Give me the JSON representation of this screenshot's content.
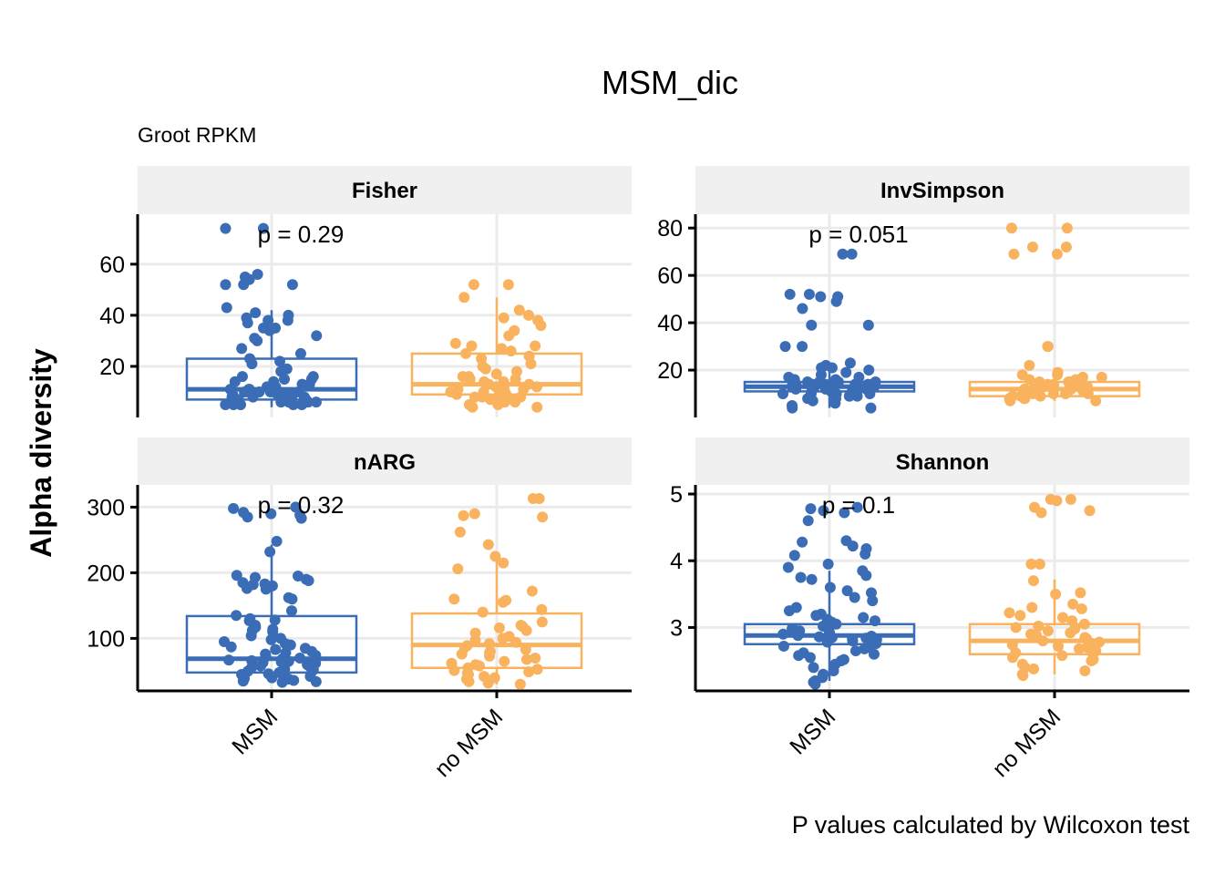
{
  "title": "MSM_dic",
  "subtitle": "Groot RPKM",
  "ylabel": "Alpha diversity",
  "caption": "P values calculated by Wilcoxon test",
  "colors": {
    "MSM": "#3a6db5",
    "no MSM": "#f9b25e",
    "strip_bg": "#f0f0f0",
    "grid": "#ebebeb"
  },
  "chart_data": {
    "type": "box",
    "categories": [
      "MSM",
      "no MSM"
    ],
    "panels": [
      {
        "name": "Fisher",
        "p_label": "p = 0.29",
        "ylim": [
          0,
          76
        ],
        "yticks": [
          20,
          40,
          60
        ],
        "boxes": [
          {
            "group": "MSM",
            "q1": 7,
            "median": 11,
            "q3": 23,
            "whisker_low": 4,
            "whisker_high": 42
          },
          {
            "group": "no MSM",
            "q1": 9,
            "median": 13,
            "q3": 25,
            "whisker_low": 4,
            "whisker_high": 47
          }
        ],
        "points": [
          {
            "group": "MSM",
            "values": [
              74,
              74,
              56,
              55,
              54,
              52,
              52,
              52,
              43,
              41,
              40,
              39,
              38,
              38,
              37,
              35,
              35,
              34,
              32,
              31,
              30,
              27,
              25,
              23,
              22,
              21,
              19,
              18,
              16,
              16,
              15,
              15,
              14,
              14,
              13,
              13,
              12,
              12,
              11,
              11,
              11,
              10,
              10,
              10,
              10,
              10,
              9,
              9,
              9,
              9,
              8,
              8,
              8,
              8,
              8,
              7,
              7,
              7,
              7,
              7,
              6,
              6,
              6,
              6,
              6,
              5,
              5,
              5,
              5,
              5
            ]
          },
          {
            "group": "no MSM",
            "values": [
              52,
              52,
              47,
              42,
              40,
              39,
              38,
              36,
              34,
              32,
              29,
              28,
              28,
              27,
              26,
              25,
              24,
              23,
              21,
              20,
              19,
              18,
              17,
              16,
              16,
              15,
              15,
              14,
              14,
              13,
              13,
              12,
              12,
              11,
              11,
              11,
              10,
              10,
              9,
              9,
              9,
              8,
              8,
              8,
              7,
              7,
              6,
              6,
              5,
              5,
              4,
              4
            ]
          }
        ]
      },
      {
        "name": "InvSimpson",
        "p_label": "p = 0.051",
        "ylim": [
          0,
          82
        ],
        "yticks": [
          20,
          40,
          60,
          80
        ],
        "boxes": [
          {
            "group": "MSM",
            "q1": 11,
            "median": 13,
            "q3": 15,
            "whisker_low": 4,
            "whisker_high": 22
          },
          {
            "group": "no MSM",
            "q1": 9,
            "median": 12,
            "q3": 15,
            "whisker_low": 7,
            "whisker_high": 21
          }
        ],
        "points": [
          {
            "group": "MSM",
            "values": [
              69,
              69,
              52,
              52,
              51,
              51,
              49,
              46,
              39,
              39,
              30,
              30,
              23,
              22,
              21,
              21,
              20,
              19,
              18,
              17,
              17,
              16,
              16,
              16,
              15,
              15,
              15,
              15,
              14,
              14,
              14,
              14,
              14,
              13,
              13,
              13,
              13,
              13,
              13,
              12,
              12,
              12,
              12,
              12,
              12,
              11,
              11,
              11,
              11,
              11,
              10,
              10,
              10,
              10,
              9,
              9,
              9,
              8,
              8,
              7,
              6,
              5,
              4,
              4
            ]
          },
          {
            "group": "no MSM",
            "values": [
              80,
              80,
              72,
              72,
              69,
              69,
              30,
              30,
              22,
              19,
              18,
              18,
              17,
              17,
              16,
              16,
              15,
              15,
              15,
              14,
              14,
              14,
              13,
              13,
              13,
              13,
              12,
              12,
              12,
              12,
              11,
              11,
              11,
              11,
              10,
              10,
              10,
              10,
              9,
              9,
              9,
              8,
              8,
              8,
              7,
              7
            ]
          }
        ]
      },
      {
        "name": "nARG",
        "p_label": "p = 0.32",
        "ylim": [
          20,
          320
        ],
        "yticks": [
          100,
          200,
          300
        ],
        "boxes": [
          {
            "group": "MSM",
            "q1": 48,
            "median": 69,
            "q3": 134,
            "whisker_low": 33,
            "whisker_high": 243
          },
          {
            "group": "no MSM",
            "q1": 55,
            "median": 90,
            "q3": 138,
            "whisker_low": 30,
            "whisker_high": 232
          }
        ],
        "points": [
          {
            "group": "MSM",
            "values": [
              300,
              298,
              292,
              290,
              288,
              285,
              283,
              248,
              232,
              196,
              195,
              193,
              190,
              188,
              185,
              183,
              182,
              180,
              176,
              175,
              162,
              160,
              142,
              135,
              130,
              128,
              127,
              120,
              117,
              114,
              112,
              110,
              104,
              100,
              98,
              95,
              92,
              90,
              87,
              85,
              83,
              80,
              78,
              76,
              74,
              72,
              70,
              69,
              68,
              67,
              66,
              65,
              64,
              63,
              62,
              60,
              58,
              56,
              55,
              53,
              52,
              50,
              48,
              46,
              45,
              44,
              42,
              40,
              39,
              38,
              37,
              36,
              35,
              34,
              33
            ]
          },
          {
            "group": "no MSM",
            "values": [
              313,
              313,
              290,
              287,
              285,
              262,
              243,
              225,
              215,
              206,
              172,
              160,
              158,
              155,
              144,
              140,
              125,
              120,
              118,
              116,
              112,
              108,
              103,
              100,
              97,
              94,
              92,
              89,
              86,
              83,
              80,
              78,
              76,
              73,
              70,
              68,
              65,
              62,
              60,
              58,
              55,
              53,
              51,
              49,
              47,
              45,
              42,
              40,
              38,
              36,
              34,
              32,
              30
            ]
          }
        ]
      },
      {
        "name": "Shannon",
        "p_label": "p = 0.1",
        "ylim": [
          2.05,
          5.0
        ],
        "yticks": [
          3,
          4,
          5
        ],
        "boxes": [
          {
            "group": "MSM",
            "q1": 2.75,
            "median": 2.88,
            "q3": 3.05,
            "whisker_low": 2.2,
            "whisker_high": 3.85
          },
          {
            "group": "no MSM",
            "q1": 2.6,
            "median": 2.8,
            "q3": 3.05,
            "whisker_low": 2.3,
            "whisker_high": 3.72
          }
        ],
        "points": [
          {
            "group": "MSM",
            "values": [
              4.8,
              4.78,
              4.75,
              4.72,
              4.6,
              4.3,
              4.28,
              4.22,
              4.18,
              4.1,
              4.08,
              3.95,
              3.9,
              3.85,
              3.78,
              3.75,
              3.72,
              3.6,
              3.55,
              3.52,
              3.45,
              3.4,
              3.3,
              3.25,
              3.2,
              3.18,
              3.15,
              3.12,
              3.1,
              3.08,
              3.05,
              3.02,
              3.0,
              2.98,
              2.96,
              2.95,
              2.93,
              2.92,
              2.9,
              2.88,
              2.87,
              2.86,
              2.85,
              2.84,
              2.83,
              2.82,
              2.8,
              2.78,
              2.76,
              2.74,
              2.72,
              2.7,
              2.68,
              2.65,
              2.62,
              2.6,
              2.58,
              2.55,
              2.52,
              2.5,
              2.45,
              2.4,
              2.35,
              2.3,
              2.25,
              2.2,
              2.18,
              2.15
            ]
          },
          {
            "group": "no MSM",
            "values": [
              4.92,
              4.92,
              4.9,
              4.8,
              4.75,
              4.72,
              3.95,
              3.95,
              3.7,
              3.52,
              3.5,
              3.35,
              3.3,
              3.28,
              3.22,
              3.18,
              3.15,
              3.1,
              3.05,
              3.02,
              3.0,
              2.98,
              2.95,
              2.92,
              2.9,
              2.88,
              2.85,
              2.83,
              2.8,
              2.78,
              2.76,
              2.74,
              2.72,
              2.7,
              2.68,
              2.65,
              2.62,
              2.6,
              2.58,
              2.55,
              2.52,
              2.5,
              2.45,
              2.4,
              2.38,
              2.35,
              2.3,
              2.28
            ]
          }
        ]
      }
    ]
  }
}
